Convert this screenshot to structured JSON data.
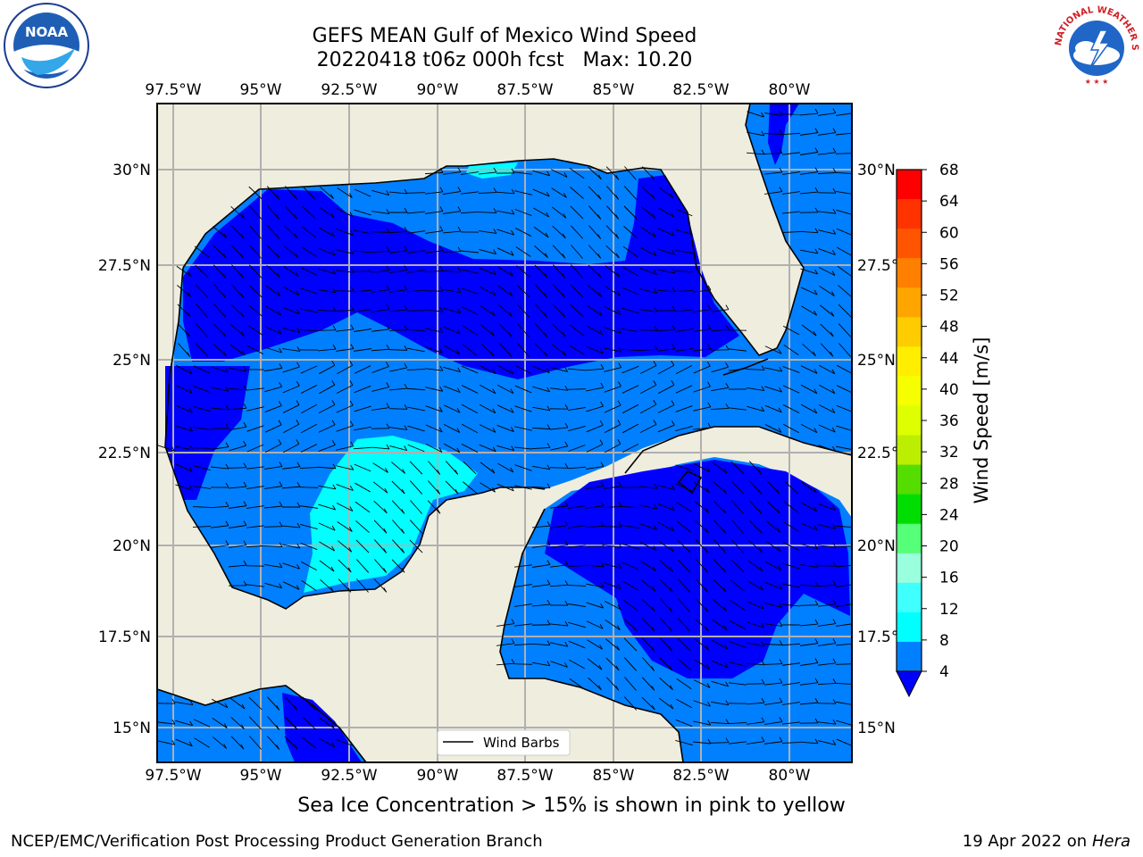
{
  "header": {
    "title_line1": "GEFS MEAN Gulf of Mexico Wind Speed",
    "title_line2": "20220418 t06z 000h fcst   Max: 10.20"
  },
  "logos": {
    "left_text": "NOAA",
    "right_text": "NATIONAL WEATHER SERVICE"
  },
  "map": {
    "lon_labels": [
      "97.5°W",
      "95°W",
      "92.5°W",
      "90°W",
      "87.5°W",
      "85°W",
      "82.5°W",
      "80°W"
    ],
    "lat_labels_left": [
      "30°N",
      "27.5°N",
      "25°N",
      "22.5°N",
      "20°N",
      "17.5°N",
      "15°N"
    ],
    "lat_labels_right": [
      "30°N",
      "27.5°N",
      "25°N",
      "22.5°N",
      "20°N",
      "17.5°N",
      "15°N"
    ],
    "legend_label": "Wind Barbs",
    "colors": {
      "land": "#efedde",
      "band_4_8": "#0080ff",
      "band_below_4": "#0000ff",
      "band_8_12": "#00ffff",
      "band_12_16": "#40ffff",
      "grid": "#b0b0b0"
    }
  },
  "colorbar": {
    "label": "Wind Speed [m/s]",
    "ticks": [
      "68",
      "64",
      "60",
      "56",
      "52",
      "48",
      "44",
      "40",
      "36",
      "32",
      "28",
      "24",
      "20",
      "16",
      "12",
      "8",
      "4"
    ],
    "colors": [
      "#ff0000",
      "#ff3300",
      "#ff5500",
      "#ff8000",
      "#ffa500",
      "#ffcc00",
      "#ffee00",
      "#f5ff00",
      "#ddff00",
      "#bbee00",
      "#55dd00",
      "#00dd00",
      "#55ff77",
      "#99ffdd",
      "#40ffff",
      "#00ffff",
      "#0080ff"
    ],
    "extend_color": "#0000ff"
  },
  "footer": {
    "caption": "Sea Ice Concentration > 15% is shown in pink to yellow",
    "credit_left": "NCEP/EMC/Verification Post Processing Product Generation Branch",
    "credit_right_date": "19 Apr 2022 on",
    "credit_right_host": "Hera"
  }
}
